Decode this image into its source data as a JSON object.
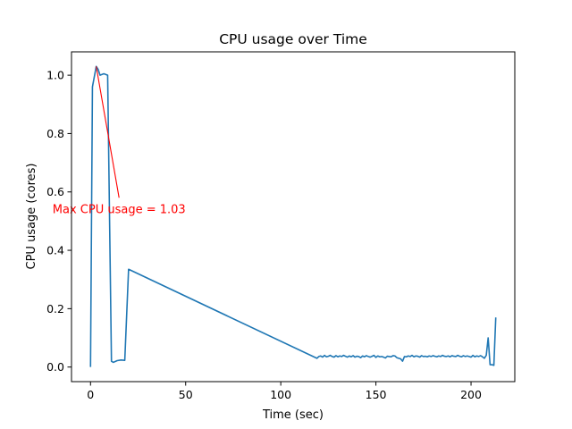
{
  "chart_data": {
    "type": "line",
    "title": "CPU usage over Time",
    "xlabel": "Time (sec)",
    "ylabel": "CPU usage (cores)",
    "xlim": [
      -10,
      223
    ],
    "ylim": [
      -0.05,
      1.08
    ],
    "xticks": [
      0,
      50,
      100,
      150,
      200
    ],
    "yticks": [
      0.0,
      0.2,
      0.4,
      0.6,
      0.8,
      1.0
    ],
    "xtick_labels": [
      "0",
      "50",
      "100",
      "150",
      "200"
    ],
    "ytick_labels": [
      "0.0",
      "0.2",
      "0.4",
      "0.6",
      "0.8",
      "1.0"
    ],
    "grid": false,
    "line_color": "#1f77b4",
    "series": [
      {
        "x": [
          0,
          1,
          3,
          4,
          5,
          7,
          9,
          11,
          12,
          14,
          16,
          18,
          20,
          118,
          119,
          120,
          121,
          122,
          123,
          124,
          125,
          126,
          127,
          128,
          129,
          130,
          131,
          132,
          133,
          134,
          135,
          136,
          137,
          138,
          139,
          140,
          141,
          142,
          143,
          144,
          145,
          146,
          147,
          148,
          149,
          150,
          151,
          152,
          153,
          154,
          155,
          156,
          157,
          158,
          159,
          160,
          161,
          162,
          163,
          164,
          165,
          166,
          167,
          168,
          169,
          170,
          171,
          172,
          173,
          174,
          175,
          176,
          177,
          178,
          179,
          180,
          181,
          182,
          183,
          184,
          185,
          186,
          187,
          188,
          189,
          190,
          191,
          192,
          193,
          194,
          195,
          196,
          197,
          198,
          199,
          200,
          201,
          202,
          203,
          204,
          205,
          206,
          207,
          208,
          209,
          210,
          211,
          212,
          213
        ],
        "y": [
          0.0,
          0.96,
          1.03,
          1.02,
          1.0,
          1.005,
          1.0,
          0.02,
          0.016,
          0.022,
          0.024,
          0.023,
          0.335,
          0.033,
          0.03,
          0.036,
          0.038,
          0.034,
          0.04,
          0.035,
          0.037,
          0.04,
          0.036,
          0.034,
          0.039,
          0.035,
          0.038,
          0.036,
          0.04,
          0.037,
          0.034,
          0.038,
          0.035,
          0.039,
          0.034,
          0.037,
          0.036,
          0.032,
          0.038,
          0.035,
          0.039,
          0.036,
          0.034,
          0.037,
          0.04,
          0.033,
          0.038,
          0.035,
          0.036,
          0.034,
          0.031,
          0.037,
          0.036,
          0.035,
          0.039,
          0.038,
          0.032,
          0.03,
          0.028,
          0.02,
          0.036,
          0.035,
          0.038,
          0.036,
          0.04,
          0.035,
          0.038,
          0.037,
          0.034,
          0.039,
          0.036,
          0.037,
          0.035,
          0.038,
          0.036,
          0.039,
          0.037,
          0.035,
          0.038,
          0.036,
          0.04,
          0.037,
          0.036,
          0.038,
          0.035,
          0.039,
          0.037,
          0.036,
          0.04,
          0.037,
          0.035,
          0.039,
          0.036,
          0.038,
          0.036,
          0.034,
          0.04,
          0.035,
          0.038,
          0.036,
          0.039,
          0.035,
          0.03,
          0.04,
          0.1,
          0.008,
          0.008,
          0.006,
          0.17
        ]
      }
    ],
    "annotation": {
      "text": "Max CPU usage = 1.03",
      "color": "#ff0000",
      "point": [
        3,
        1.03
      ],
      "text_anchor_point": [
        15,
        0.58
      ]
    }
  }
}
